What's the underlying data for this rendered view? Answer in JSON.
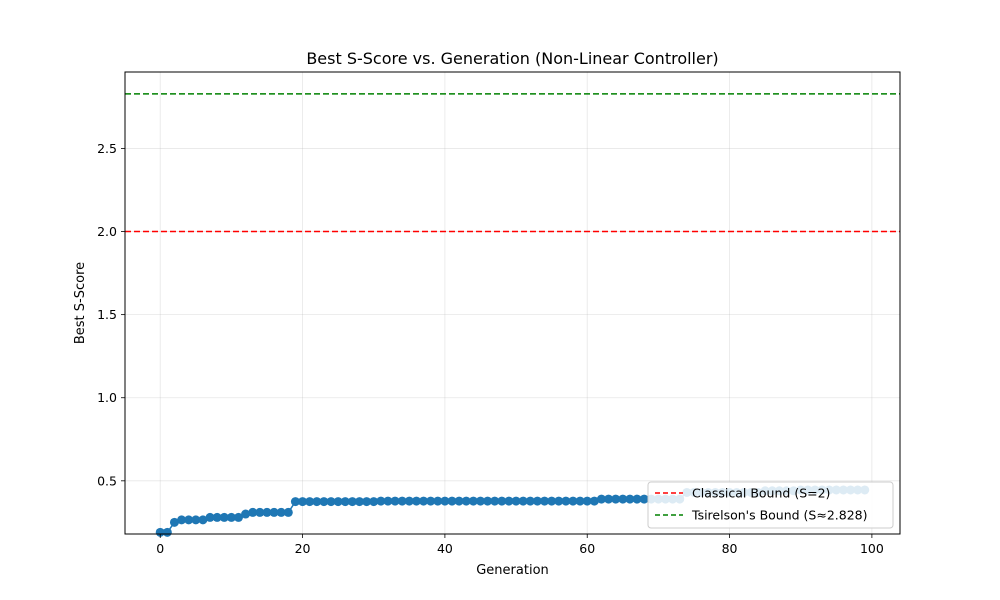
{
  "chart_data": {
    "type": "line",
    "title": "Best S-Score vs. Generation (Non-Linear Controller)",
    "xlabel": "Generation",
    "ylabel": "Best S-Score",
    "xlim": [
      -4.95,
      103.95
    ],
    "ylim": [
      0.18,
      2.96
    ],
    "xticks": [
      0,
      20,
      40,
      60,
      80,
      100
    ],
    "xtick_labels": [
      "0",
      "20",
      "40",
      "60",
      "80",
      "100"
    ],
    "yticks": [
      0.5,
      1.0,
      1.5,
      2.0,
      2.5
    ],
    "ytick_labels": [
      "0.5",
      "1.0",
      "1.5",
      "2.0",
      "2.5"
    ],
    "grid": true,
    "legend_position": "bottom-right",
    "series": [
      {
        "color": "#1f77b4",
        "marker": "circle",
        "x": [
          0,
          1,
          2,
          3,
          4,
          5,
          6,
          7,
          8,
          9,
          10,
          11,
          12,
          13,
          14,
          15,
          16,
          17,
          18,
          19,
          20,
          21,
          22,
          23,
          24,
          25,
          26,
          27,
          28,
          29,
          30,
          31,
          32,
          33,
          34,
          35,
          36,
          37,
          38,
          39,
          40,
          41,
          42,
          43,
          44,
          45,
          46,
          47,
          48,
          49,
          50,
          51,
          52,
          53,
          54,
          55,
          56,
          57,
          58,
          59,
          60,
          61,
          62,
          63,
          64,
          65,
          66,
          67,
          68,
          69,
          70,
          71,
          72,
          73,
          74,
          75,
          76,
          77,
          78,
          79,
          80,
          81,
          82,
          83,
          84,
          85,
          86,
          87,
          88,
          89,
          90,
          91,
          92,
          93,
          94,
          95,
          96,
          97,
          98,
          99
        ],
        "y": [
          0.19,
          0.19,
          0.25,
          0.265,
          0.265,
          0.265,
          0.265,
          0.28,
          0.28,
          0.28,
          0.28,
          0.28,
          0.3,
          0.31,
          0.31,
          0.31,
          0.31,
          0.31,
          0.31,
          0.375,
          0.375,
          0.375,
          0.375,
          0.375,
          0.375,
          0.375,
          0.375,
          0.375,
          0.375,
          0.375,
          0.375,
          0.378,
          0.378,
          0.378,
          0.378,
          0.378,
          0.378,
          0.378,
          0.378,
          0.378,
          0.378,
          0.378,
          0.378,
          0.378,
          0.378,
          0.378,
          0.378,
          0.378,
          0.378,
          0.378,
          0.378,
          0.378,
          0.378,
          0.378,
          0.378,
          0.378,
          0.378,
          0.378,
          0.378,
          0.378,
          0.378,
          0.378,
          0.39,
          0.39,
          0.39,
          0.39,
          0.39,
          0.39,
          0.39,
          0.39,
          0.39,
          0.39,
          0.39,
          0.39,
          0.43,
          0.43,
          0.43,
          0.43,
          0.43,
          0.43,
          0.43,
          0.43,
          0.43,
          0.43,
          0.43,
          0.44,
          0.44,
          0.44,
          0.44,
          0.44,
          0.445,
          0.445,
          0.445,
          0.445,
          0.445,
          0.445,
          0.445,
          0.445,
          0.445,
          0.445
        ]
      }
    ],
    "hlines": [
      {
        "name": "Classical Bound (S=2)",
        "y": 2.0,
        "color": "#ff0000",
        "style": "dashed"
      },
      {
        "name": "Tsirelson's Bound (S≈2.828)",
        "y": 2.828,
        "color": "#008000",
        "style": "dashed"
      }
    ]
  }
}
